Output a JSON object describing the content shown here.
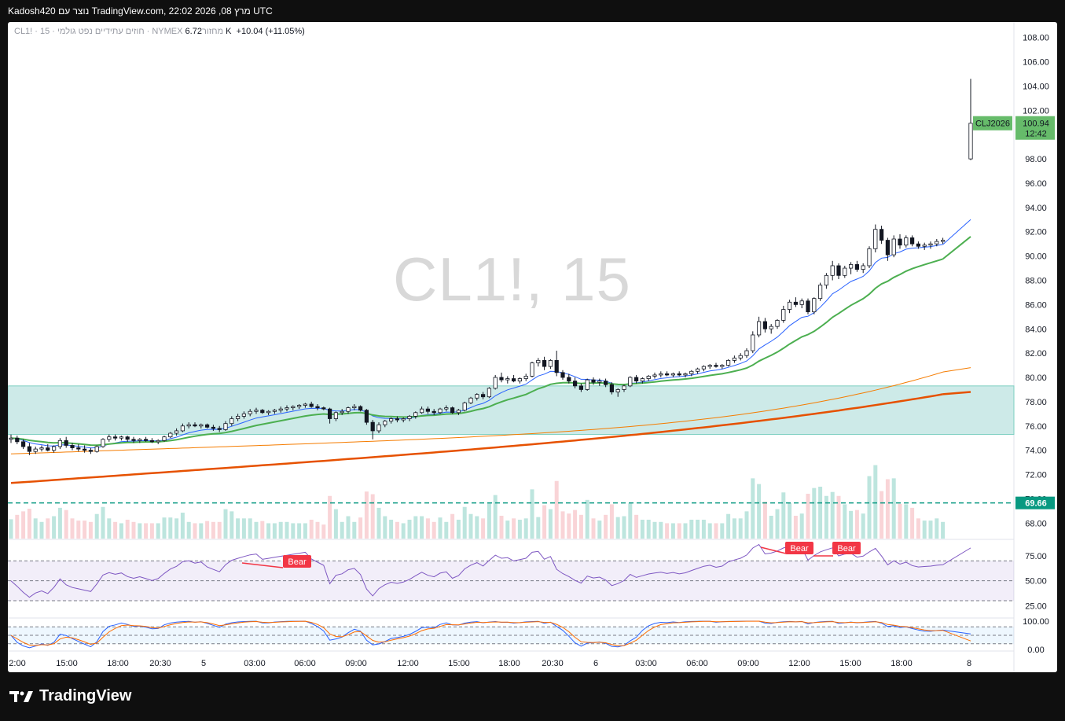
{
  "header": {
    "snapshot_text": "Kadosh420 נוצר עם TradingView.com, 22:02 2026 ,08 מרץ UTC"
  },
  "legend": {
    "symbol_line": "CL1! · 15 · חוזים עתידיים נפט גולמי · NYMEX",
    "volume_label": "מחזור",
    "volume_value": "6.72 K",
    "change": "+10.04 (+11.05%)"
  },
  "watermark": "CL1!, 15",
  "footer": {
    "brand": "TradingView"
  },
  "colors": {
    "up": "#089981",
    "down": "#f23645",
    "ema_fast": "#2962ff",
    "ema_mid": "#4caf50",
    "ma_slow": "#f57c00",
    "ma_long": "#e65100",
    "zone": "#b2dfdb",
    "rsi": "#7e57c2",
    "stoch_k": "#2962ff",
    "stoch_d": "#ff6d00",
    "last_price": "#66bb6a"
  },
  "chart_data": {
    "type": "candlestick",
    "price_axis": {
      "ticks": [
        "108.00",
        "106.00",
        "104.00",
        "102.00",
        "100.00",
        "98.00",
        "96.00",
        "94.00",
        "92.00",
        "90.00",
        "88.00",
        "86.00",
        "84.00",
        "82.00",
        "80.00",
        "78.00",
        "76.00",
        "74.00",
        "72.00",
        "70.00",
        "68.00"
      ],
      "ylim": [
        67.5,
        108.5
      ]
    },
    "time_axis": {
      "ticks": [
        "2:00",
        "15:00",
        "18:00",
        "20:30",
        "5",
        "03:00",
        "06:00",
        "09:00",
        "12:00",
        "15:00",
        "18:00",
        "20:30",
        "6",
        "03:00",
        "06:00",
        "09:00",
        "12:00",
        "15:00",
        "18:00",
        "8"
      ]
    },
    "last_price": {
      "symbol": "CLJ2026",
      "price": "100.94",
      "countdown": "12:42",
      "value": 100.94
    },
    "marked_level": {
      "label": "69.66",
      "value": 69.66
    },
    "zone": {
      "from": 75.3,
      "to": 79.3
    },
    "candles": [
      [
        74.9,
        75.3,
        74.6,
        75.0
      ],
      [
        75.0,
        75.2,
        74.5,
        74.7
      ],
      [
        74.7,
        74.9,
        74.1,
        74.3
      ],
      [
        74.3,
        74.6,
        73.6,
        73.9
      ],
      [
        73.9,
        74.3,
        73.7,
        74.1
      ],
      [
        74.1,
        74.4,
        73.9,
        74.2
      ],
      [
        74.2,
        74.5,
        73.9,
        74.0
      ],
      [
        74.0,
        74.4,
        73.8,
        74.3
      ],
      [
        74.3,
        75.0,
        74.1,
        74.8
      ],
      [
        74.8,
        75.1,
        74.2,
        74.4
      ],
      [
        74.4,
        74.6,
        74.0,
        74.2
      ],
      [
        74.2,
        74.5,
        73.9,
        74.1
      ],
      [
        74.1,
        74.4,
        73.8,
        74.0
      ],
      [
        74.0,
        74.2,
        73.7,
        73.9
      ],
      [
        73.9,
        74.4,
        73.8,
        74.3
      ],
      [
        74.3,
        75.0,
        74.2,
        74.9
      ],
      [
        74.9,
        75.3,
        74.7,
        75.1
      ],
      [
        75.1,
        75.3,
        74.8,
        75.0
      ],
      [
        75.0,
        75.2,
        74.8,
        75.1
      ],
      [
        75.1,
        75.2,
        74.7,
        74.9
      ],
      [
        74.9,
        75.1,
        74.6,
        74.8
      ],
      [
        74.8,
        75.0,
        74.6,
        74.9
      ],
      [
        74.9,
        75.1,
        74.7,
        74.8
      ],
      [
        74.8,
        75.0,
        74.6,
        74.7
      ],
      [
        74.7,
        74.9,
        74.5,
        74.8
      ],
      [
        74.8,
        75.2,
        74.7,
        75.1
      ],
      [
        75.1,
        75.5,
        75.0,
        75.4
      ],
      [
        75.4,
        75.8,
        75.2,
        75.6
      ],
      [
        75.6,
        76.2,
        75.5,
        76.0
      ],
      [
        76.0,
        76.3,
        75.8,
        76.1
      ],
      [
        76.1,
        76.3,
        75.9,
        76.0
      ],
      [
        76.0,
        76.2,
        75.8,
        76.1
      ],
      [
        76.1,
        76.2,
        75.8,
        75.9
      ],
      [
        75.9,
        76.1,
        75.6,
        75.8
      ],
      [
        75.8,
        76.0,
        75.5,
        75.7
      ],
      [
        75.7,
        76.4,
        75.6,
        76.2
      ],
      [
        76.2,
        76.8,
        76.0,
        76.6
      ],
      [
        76.6,
        77.0,
        76.4,
        76.8
      ],
      [
        76.8,
        77.2,
        76.6,
        77.0
      ],
      [
        77.0,
        77.4,
        76.8,
        77.2
      ],
      [
        77.2,
        77.5,
        77.0,
        77.3
      ],
      [
        77.3,
        77.4,
        77.0,
        77.1
      ],
      [
        77.1,
        77.3,
        76.9,
        77.2
      ],
      [
        77.2,
        77.4,
        77.0,
        77.3
      ],
      [
        77.3,
        77.6,
        77.1,
        77.4
      ],
      [
        77.4,
        77.7,
        77.2,
        77.5
      ],
      [
        77.5,
        77.7,
        77.3,
        77.6
      ],
      [
        77.6,
        77.8,
        77.4,
        77.7
      ],
      [
        77.7,
        77.9,
        77.5,
        77.8
      ],
      [
        77.8,
        78.0,
        77.5,
        77.6
      ],
      [
        77.6,
        77.8,
        77.3,
        77.5
      ],
      [
        77.5,
        77.6,
        77.3,
        77.4
      ],
      [
        77.4,
        77.5,
        76.2,
        76.6
      ],
      [
        76.6,
        77.2,
        76.4,
        77.1
      ],
      [
        77.1,
        77.4,
        76.9,
        77.2
      ],
      [
        77.2,
        77.6,
        77.0,
        77.5
      ],
      [
        77.5,
        77.8,
        77.3,
        77.6
      ],
      [
        77.6,
        77.7,
        77.2,
        77.3
      ],
      [
        77.3,
        77.4,
        76.1,
        76.3
      ],
      [
        76.3,
        76.5,
        74.9,
        75.6
      ],
      [
        75.6,
        76.3,
        75.4,
        76.1
      ],
      [
        76.1,
        76.5,
        75.9,
        76.4
      ],
      [
        76.4,
        76.7,
        76.2,
        76.6
      ],
      [
        76.6,
        76.8,
        76.3,
        76.5
      ],
      [
        76.5,
        76.7,
        76.3,
        76.6
      ],
      [
        76.6,
        76.9,
        76.4,
        76.8
      ],
      [
        76.8,
        77.2,
        76.6,
        77.1
      ],
      [
        77.1,
        77.6,
        77.0,
        77.4
      ],
      [
        77.4,
        77.6,
        77.0,
        77.2
      ],
      [
        77.2,
        77.4,
        76.9,
        77.1
      ],
      [
        77.1,
        77.5,
        77.0,
        77.4
      ],
      [
        77.4,
        77.7,
        77.2,
        77.5
      ],
      [
        77.5,
        77.6,
        77.0,
        77.1
      ],
      [
        77.1,
        77.4,
        76.9,
        77.3
      ],
      [
        77.3,
        78.0,
        77.2,
        77.9
      ],
      [
        77.9,
        78.4,
        77.8,
        78.3
      ],
      [
        78.3,
        78.7,
        78.1,
        78.6
      ],
      [
        78.6,
        78.8,
        78.2,
        78.4
      ],
      [
        78.4,
        79.2,
        78.3,
        79.1
      ],
      [
        79.1,
        80.2,
        79.0,
        80.0
      ],
      [
        80.0,
        80.4,
        79.6,
        79.8
      ],
      [
        79.8,
        80.1,
        79.5,
        79.9
      ],
      [
        79.9,
        80.2,
        79.6,
        79.7
      ],
      [
        79.7,
        80.0,
        79.5,
        79.9
      ],
      [
        79.9,
        80.3,
        79.7,
        80.1
      ],
      [
        80.1,
        81.3,
        80.0,
        81.2
      ],
      [
        81.2,
        81.6,
        80.9,
        81.4
      ],
      [
        81.4,
        81.7,
        80.6,
        80.9
      ],
      [
        80.9,
        81.5,
        80.7,
        81.4
      ],
      [
        81.4,
        82.2,
        80.1,
        80.4
      ],
      [
        80.4,
        80.6,
        79.8,
        80.0
      ],
      [
        80.0,
        80.3,
        79.5,
        79.7
      ],
      [
        79.7,
        80.0,
        79.1,
        79.3
      ],
      [
        79.3,
        79.5,
        78.8,
        79.0
      ],
      [
        79.0,
        79.9,
        78.9,
        79.8
      ],
      [
        79.8,
        80.0,
        79.4,
        79.6
      ],
      [
        79.6,
        79.9,
        79.3,
        79.7
      ],
      [
        79.7,
        79.9,
        79.2,
        79.4
      ],
      [
        79.4,
        79.6,
        78.6,
        78.8
      ],
      [
        78.8,
        79.1,
        78.4,
        79.0
      ],
      [
        79.0,
        79.4,
        78.8,
        79.3
      ],
      [
        79.3,
        80.1,
        79.2,
        80.0
      ],
      [
        80.0,
        80.2,
        79.5,
        79.7
      ],
      [
        79.7,
        80.0,
        79.5,
        79.9
      ],
      [
        79.9,
        80.2,
        79.7,
        80.1
      ],
      [
        80.1,
        80.4,
        79.9,
        80.2
      ],
      [
        80.2,
        80.5,
        80.0,
        80.3
      ],
      [
        80.3,
        80.5,
        80.1,
        80.2
      ],
      [
        80.2,
        80.4,
        80.0,
        80.3
      ],
      [
        80.3,
        80.5,
        80.1,
        80.2
      ],
      [
        80.2,
        80.4,
        80.0,
        80.3
      ],
      [
        80.3,
        80.6,
        80.1,
        80.5
      ],
      [
        80.5,
        80.8,
        80.3,
        80.7
      ],
      [
        80.7,
        81.0,
        80.5,
        80.9
      ],
      [
        80.9,
        81.1,
        80.7,
        81.0
      ],
      [
        81.0,
        81.2,
        80.8,
        80.9
      ],
      [
        80.9,
        81.1,
        80.7,
        81.0
      ],
      [
        81.0,
        81.5,
        80.9,
        81.4
      ],
      [
        81.4,
        81.8,
        81.2,
        81.6
      ],
      [
        81.6,
        82.0,
        81.4,
        81.8
      ],
      [
        81.8,
        82.4,
        81.6,
        82.2
      ],
      [
        82.2,
        83.8,
        82.0,
        83.5
      ],
      [
        83.5,
        85.0,
        83.3,
        84.6
      ],
      [
        84.6,
        84.9,
        83.7,
        84.0
      ],
      [
        84.0,
        84.4,
        83.6,
        84.2
      ],
      [
        84.2,
        84.8,
        84.0,
        84.7
      ],
      [
        84.7,
        85.9,
        84.5,
        85.6
      ],
      [
        85.6,
        86.4,
        85.3,
        86.2
      ],
      [
        86.2,
        86.6,
        85.8,
        86.0
      ],
      [
        86.0,
        86.5,
        85.7,
        86.3
      ],
      [
        86.3,
        86.5,
        85.2,
        85.4
      ],
      [
        85.4,
        86.6,
        85.2,
        86.5
      ],
      [
        86.5,
        87.8,
        86.3,
        87.6
      ],
      [
        87.6,
        88.6,
        87.3,
        88.4
      ],
      [
        88.4,
        89.6,
        88.0,
        89.2
      ],
      [
        89.2,
        89.4,
        88.1,
        88.4
      ],
      [
        88.4,
        89.2,
        88.2,
        89.0
      ],
      [
        89.0,
        89.5,
        88.5,
        89.3
      ],
      [
        89.3,
        89.6,
        88.7,
        88.9
      ],
      [
        88.9,
        89.4,
        88.6,
        89.2
      ],
      [
        89.2,
        90.8,
        89.0,
        90.6
      ],
      [
        90.6,
        92.6,
        90.3,
        92.2
      ],
      [
        92.2,
        92.5,
        91.0,
        91.3
      ],
      [
        91.3,
        91.5,
        89.6,
        90.1
      ],
      [
        90.1,
        91.7,
        89.9,
        91.4
      ],
      [
        91.4,
        91.8,
        90.6,
        90.9
      ],
      [
        90.9,
        91.7,
        90.7,
        91.5
      ],
      [
        91.5,
        91.7,
        90.8,
        91.0
      ],
      [
        91.0,
        91.2,
        90.6,
        90.8
      ],
      [
        90.8,
        91.1,
        90.5,
        90.9
      ],
      [
        90.9,
        91.2,
        90.6,
        91.0
      ],
      [
        91.0,
        91.4,
        90.8,
        91.2
      ],
      [
        91.2,
        91.5,
        91.0,
        91.3
      ]
    ],
    "last_candle": [
      98.0,
      104.6,
      97.9,
      100.94
    ],
    "volume_bars": "per-candle, green = up, red = down",
    "rsi": {
      "ticks": [
        "75.00",
        "50.00",
        "25.00"
      ],
      "ylim": [
        15,
        90
      ],
      "upper": 70,
      "lower": 30,
      "labels": [
        "Bear",
        "Bear",
        "Bear"
      ]
    },
    "stoch": {
      "ticks": [
        "100.00",
        "0.00"
      ],
      "upper": 80,
      "lower": 20
    }
  }
}
